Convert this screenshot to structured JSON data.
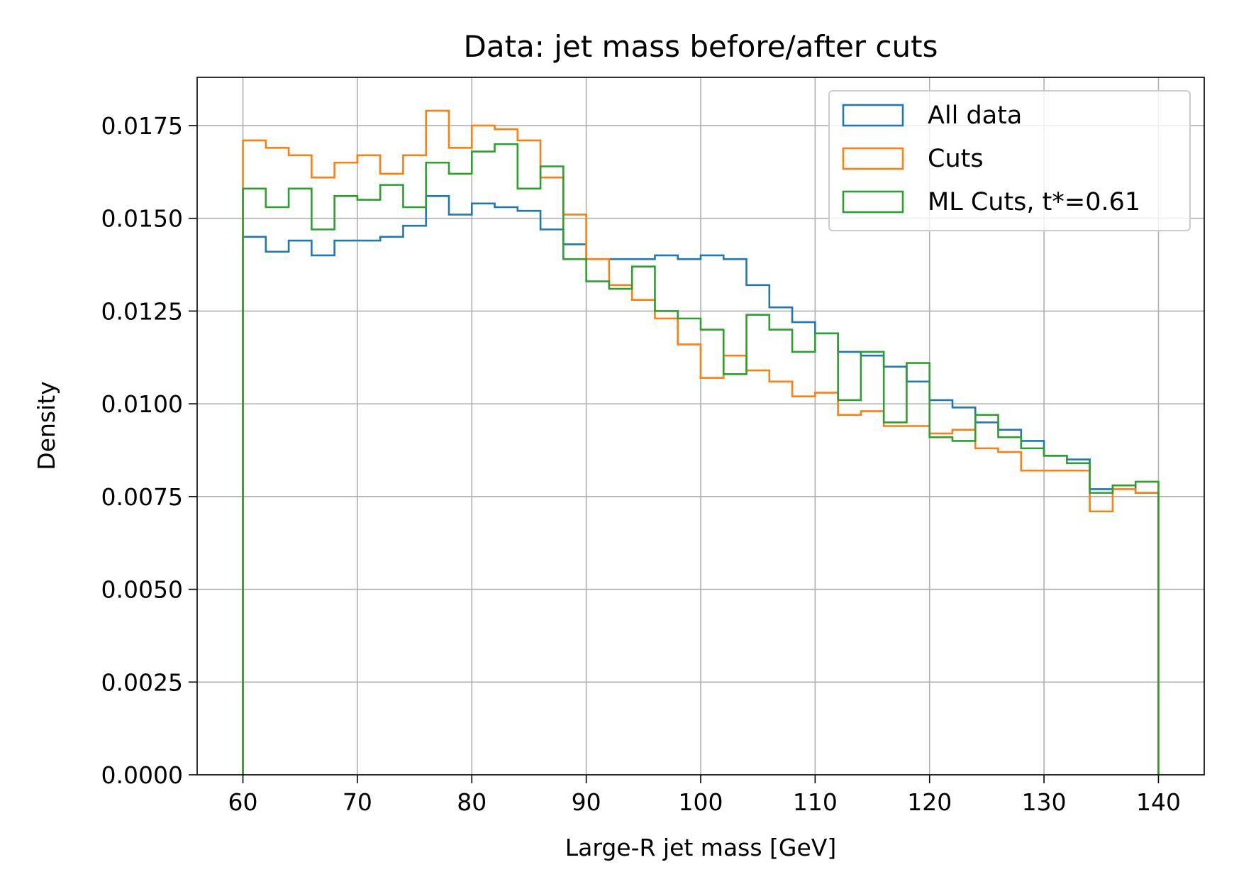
{
  "chart_data": {
    "type": "histogram-step",
    "title": "Data: jet mass before/after cuts",
    "xlabel": "Large-R jet mass [GeV]",
    "ylabel": "Density",
    "xlim": [
      56,
      144
    ],
    "ylim": [
      0,
      0.0188
    ],
    "grid": true,
    "legend_position": "top-right",
    "xticks": [
      60,
      70,
      80,
      90,
      100,
      110,
      120,
      130,
      140
    ],
    "xtick_labels": [
      "60",
      "70",
      "80",
      "90",
      "100",
      "110",
      "120",
      "130",
      "140"
    ],
    "yticks": [
      0,
      0.0025,
      0.005,
      0.0075,
      0.01,
      0.0125,
      0.015,
      0.0175
    ],
    "ytick_labels": [
      "0.0000",
      "0.0025",
      "0.0050",
      "0.0075",
      "0.0100",
      "0.0125",
      "0.0150",
      "0.0175"
    ],
    "bin_edges": [
      60,
      62,
      64,
      66,
      68,
      70,
      72,
      74,
      76,
      78,
      80,
      82,
      84,
      86,
      88,
      90,
      92,
      94,
      96,
      98,
      100,
      102,
      104,
      106,
      108,
      110,
      112,
      114,
      116,
      118,
      120,
      122,
      124,
      126,
      128,
      130,
      132,
      134,
      136,
      138,
      140
    ],
    "series": [
      {
        "name": "All data",
        "color": "#1f77b4",
        "values": [
          0.0145,
          0.0141,
          0.0144,
          0.014,
          0.0144,
          0.0144,
          0.0145,
          0.0148,
          0.0156,
          0.0151,
          0.0154,
          0.0153,
          0.0152,
          0.0147,
          0.0143,
          0.0139,
          0.0139,
          0.0139,
          0.014,
          0.0139,
          0.014,
          0.0139,
          0.0132,
          0.0126,
          0.0122,
          0.0119,
          0.0114,
          0.0113,
          0.011,
          0.0106,
          0.0101,
          0.0099,
          0.0095,
          0.0093,
          0.009,
          0.0086,
          0.0085,
          0.0077,
          0.0078,
          0.0076
        ]
      },
      {
        "name": "Cuts",
        "color": "#ff7f0e",
        "values": [
          0.0171,
          0.0169,
          0.0167,
          0.0161,
          0.0165,
          0.0167,
          0.0162,
          0.0167,
          0.0179,
          0.0169,
          0.0175,
          0.0174,
          0.0171,
          0.0161,
          0.0151,
          0.0139,
          0.0132,
          0.0128,
          0.0123,
          0.0116,
          0.0107,
          0.0113,
          0.0109,
          0.0106,
          0.0102,
          0.0103,
          0.0097,
          0.0098,
          0.0094,
          0.0094,
          0.0092,
          0.0093,
          0.0088,
          0.0087,
          0.0082,
          0.0082,
          0.0082,
          0.0071,
          0.0077,
          0.0076
        ]
      },
      {
        "name": "ML Cuts, t*=0.61",
        "color": "#2ca02c",
        "values": [
          0.0158,
          0.0153,
          0.0158,
          0.0147,
          0.0156,
          0.0155,
          0.0159,
          0.0153,
          0.0165,
          0.0162,
          0.0168,
          0.017,
          0.0158,
          0.0164,
          0.0139,
          0.0133,
          0.0131,
          0.0137,
          0.0125,
          0.0123,
          0.012,
          0.0108,
          0.0124,
          0.012,
          0.0114,
          0.0119,
          0.0101,
          0.0114,
          0.0095,
          0.0111,
          0.0091,
          0.009,
          0.0097,
          0.0091,
          0.0088,
          0.0086,
          0.0084,
          0.0076,
          0.0078,
          0.0079
        ]
      }
    ]
  }
}
